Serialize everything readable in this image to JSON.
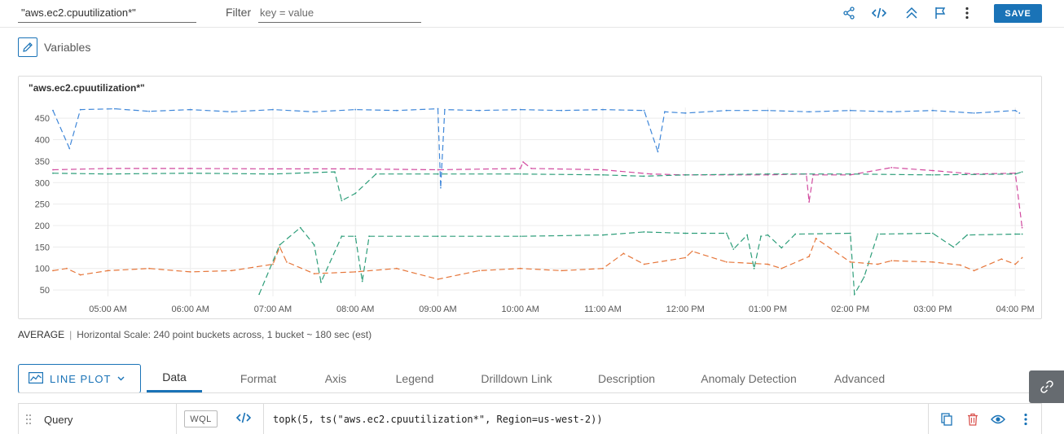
{
  "header": {
    "title_value": "\"aws.ec2.cpuutilization*\"",
    "filter_label": "Filter",
    "filter_placeholder": "key = value",
    "save_label": "SAVE"
  },
  "variables": {
    "label": "Variables"
  },
  "chart": {
    "title": "\"aws.ec2.cpuutilization*\""
  },
  "chart_data": {
    "type": "line",
    "title": "\"aws.ec2.cpuutilization*\"",
    "xlabel": "",
    "ylabel": "",
    "x_range": [
      "04:20 AM",
      "04:07 PM"
    ],
    "x_ticks": [
      "05:00 AM",
      "06:00 AM",
      "07:00 AM",
      "08:00 AM",
      "09:00 AM",
      "10:00 AM",
      "11:00 AM",
      "12:00 PM",
      "01:00 PM",
      "02:00 PM",
      "03:00 PM",
      "04:00 PM"
    ],
    "y_ticks": [
      50,
      100,
      150,
      200,
      250,
      300,
      350,
      400,
      450
    ],
    "ylim": [
      35,
      475
    ],
    "grid": true,
    "legend": "none",
    "series": [
      {
        "color": "#3f87d9",
        "points": [
          [
            "04:20 AM",
            468
          ],
          [
            "04:32 AM",
            380
          ],
          [
            "04:40 AM",
            470
          ],
          [
            "05:05 AM",
            472
          ],
          [
            "05:30 AM",
            466
          ],
          [
            "06:00 AM",
            470
          ],
          [
            "06:30 AM",
            465
          ],
          [
            "07:00 AM",
            470
          ],
          [
            "07:30 AM",
            465
          ],
          [
            "08:00 AM",
            470
          ],
          [
            "08:30 AM",
            468
          ],
          [
            "09:00 AM",
            472
          ],
          [
            "09:02 AM",
            288
          ],
          [
            "09:05 AM",
            470
          ],
          [
            "09:30 AM",
            468
          ],
          [
            "10:00 AM",
            470
          ],
          [
            "10:30 AM",
            468
          ],
          [
            "11:00 AM",
            470
          ],
          [
            "11:30 AM",
            468
          ],
          [
            "11:40 AM",
            372
          ],
          [
            "11:45 AM",
            465
          ],
          [
            "12:00 PM",
            462
          ],
          [
            "12:30 PM",
            468
          ],
          [
            "01:00 PM",
            468
          ],
          [
            "01:30 PM",
            465
          ],
          [
            "02:00 PM",
            468
          ],
          [
            "02:30 PM",
            465
          ],
          [
            "03:00 PM",
            468
          ],
          [
            "03:30 PM",
            462
          ],
          [
            "04:00 PM",
            468
          ],
          [
            "04:03 PM",
            462
          ]
        ]
      },
      {
        "color": "#d14a9f",
        "points": [
          [
            "04:20 AM",
            330
          ],
          [
            "05:00 AM",
            333
          ],
          [
            "06:00 AM",
            333
          ],
          [
            "07:00 AM",
            332
          ],
          [
            "08:00 AM",
            332
          ],
          [
            "09:00 AM",
            330
          ],
          [
            "10:00 AM",
            333
          ],
          [
            "10:02 AM",
            348
          ],
          [
            "10:08 AM",
            333
          ],
          [
            "11:00 AM",
            330
          ],
          [
            "11:35 AM",
            320
          ],
          [
            "12:00 PM",
            318
          ],
          [
            "01:00 PM",
            318
          ],
          [
            "01:28 PM",
            320
          ],
          [
            "01:30 PM",
            255
          ],
          [
            "01:33 PM",
            318
          ],
          [
            "02:00 PM",
            318
          ],
          [
            "02:30 PM",
            335
          ],
          [
            "03:00 PM",
            328
          ],
          [
            "03:30 PM",
            320
          ],
          [
            "04:00 PM",
            322
          ],
          [
            "04:05 PM",
            195
          ]
        ]
      },
      {
        "color": "#2e9e7a",
        "points": [
          [
            "04:20 AM",
            322
          ],
          [
            "05:00 AM",
            320
          ],
          [
            "06:00 AM",
            322
          ],
          [
            "07:00 AM",
            320
          ],
          [
            "07:45 AM",
            325
          ],
          [
            "07:50 AM",
            258
          ],
          [
            "08:00 AM",
            275
          ],
          [
            "08:15 AM",
            320
          ],
          [
            "09:00 AM",
            320
          ],
          [
            "10:00 AM",
            320
          ],
          [
            "11:00 AM",
            318
          ],
          [
            "11:30 AM",
            315
          ],
          [
            "12:00 PM",
            318
          ],
          [
            "01:00 PM",
            320
          ],
          [
            "02:00 PM",
            320
          ],
          [
            "03:00 PM",
            318
          ],
          [
            "04:00 PM",
            320
          ],
          [
            "04:05 PM",
            325
          ]
        ]
      },
      {
        "color": "#2e9e7a",
        "points": [
          [
            "06:50 AM",
            40
          ],
          [
            "07:05 AM",
            155
          ],
          [
            "07:20 AM",
            195
          ],
          [
            "07:30 AM",
            155
          ],
          [
            "07:35 AM",
            68
          ],
          [
            "07:50 AM",
            175
          ],
          [
            "08:00 AM",
            175
          ],
          [
            "08:05 AM",
            70
          ],
          [
            "08:10 AM",
            175
          ],
          [
            "09:00 AM",
            175
          ],
          [
            "10:00 AM",
            175
          ],
          [
            "11:00 AM",
            178
          ],
          [
            "11:30 AM",
            185
          ],
          [
            "12:00 PM",
            182
          ],
          [
            "12:30 PM",
            182
          ],
          [
            "12:35 PM",
            145
          ],
          [
            "12:45 PM",
            178
          ],
          [
            "12:50 PM",
            100
          ],
          [
            "12:55 PM",
            175
          ],
          [
            "01:00 PM",
            178
          ],
          [
            "01:10 PM",
            148
          ],
          [
            "01:20 PM",
            180
          ],
          [
            "02:00 PM",
            182
          ],
          [
            "02:03 PM",
            40
          ],
          [
            "02:10 PM",
            80
          ],
          [
            "02:20 PM",
            180
          ],
          [
            "03:00 PM",
            182
          ],
          [
            "03:15 PM",
            150
          ],
          [
            "03:25 PM",
            178
          ],
          [
            "04:00 PM",
            180
          ],
          [
            "04:05 PM",
            180
          ]
        ]
      },
      {
        "color": "#e6763a",
        "points": [
          [
            "04:20 AM",
            95
          ],
          [
            "04:30 AM",
            100
          ],
          [
            "04:40 AM",
            85
          ],
          [
            "05:00 AM",
            95
          ],
          [
            "05:30 AM",
            100
          ],
          [
            "06:00 AM",
            92
          ],
          [
            "06:30 AM",
            95
          ],
          [
            "07:00 AM",
            110
          ],
          [
            "07:05 AM",
            150
          ],
          [
            "07:10 AM",
            115
          ],
          [
            "07:30 AM",
            88
          ],
          [
            "08:00 AM",
            92
          ],
          [
            "08:30 AM",
            100
          ],
          [
            "09:00 AM",
            75
          ],
          [
            "09:30 AM",
            95
          ],
          [
            "10:00 AM",
            100
          ],
          [
            "10:30 AM",
            95
          ],
          [
            "11:00 AM",
            100
          ],
          [
            "11:15 AM",
            135
          ],
          [
            "11:30 AM",
            110
          ],
          [
            "12:00 PM",
            125
          ],
          [
            "12:05 PM",
            140
          ],
          [
            "12:30 PM",
            115
          ],
          [
            "01:00 PM",
            110
          ],
          [
            "01:10 PM",
            100
          ],
          [
            "01:30 PM",
            128
          ],
          [
            "01:35 PM",
            170
          ],
          [
            "02:00 PM",
            115
          ],
          [
            "02:20 PM",
            110
          ],
          [
            "02:30 PM",
            118
          ],
          [
            "03:00 PM",
            115
          ],
          [
            "03:20 PM",
            108
          ],
          [
            "03:30 PM",
            95
          ],
          [
            "03:50 PM",
            122
          ],
          [
            "04:00 PM",
            110
          ],
          [
            "04:05 PM",
            125
          ]
        ]
      }
    ]
  },
  "summary": {
    "mode": "AVERAGE",
    "scale_text": "Horizontal Scale: 240 point buckets across, 1 bucket ~ 180 sec (est)"
  },
  "plot_type": {
    "label": "LINE PLOT"
  },
  "tabs": [
    "Data",
    "Format",
    "Axis",
    "Legend",
    "Drilldown Link",
    "Description",
    "Anomaly Detection",
    "Advanced"
  ],
  "query": {
    "label": "Query",
    "language_badge": "WQL",
    "expression": "topk(5, ts(\"aws.ec2.cpuutilization*\", Region=us-west-2))"
  },
  "icons": {
    "share": "share-icon",
    "code": "code-icon",
    "collapse": "double-chevron-up-icon",
    "flag": "flag-icon",
    "more": "more-vertical-icon",
    "pencil": "pencil-icon",
    "link": "link-icon",
    "copy": "copy-icon",
    "delete": "trash-icon",
    "eye": "eye-icon"
  },
  "colors": {
    "accent": "#1a73b7",
    "delete": "#d9534f"
  }
}
